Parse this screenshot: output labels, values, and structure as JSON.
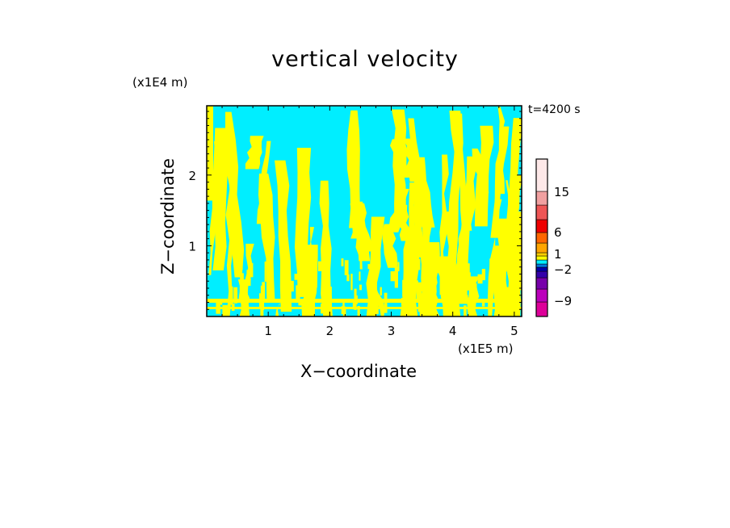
{
  "chart_data": {
    "type": "heatmap",
    "title": "vertical velocity",
    "xlabel": "X−coordinate",
    "ylabel": "Z−coordinate",
    "x_unit_label": "(x1E5 m)",
    "y_unit_label": "(x1E4 m)",
    "time_label": "t=4200 s",
    "xlim": [
      0,
      5.12
    ],
    "ylim": [
      0,
      2.98
    ],
    "x_ticks": [
      1,
      2,
      3,
      4,
      5
    ],
    "x_tick_labels": [
      "1",
      "2",
      "3",
      "4",
      "5"
    ],
    "y_ticks": [
      1,
      2
    ],
    "y_tick_labels": [
      "1",
      "2"
    ],
    "field_colors": {
      "positive": "#ffff00",
      "negative": "#00eeff"
    },
    "colorbar": {
      "levels_bottom_to_top": [
        {
          "color": "#dd0099"
        },
        {
          "color": "#bb00bb"
        },
        {
          "color": "#7700aa"
        },
        {
          "color": "#3300aa"
        },
        {
          "color": "#0000aa"
        },
        {
          "color": "#0077dd"
        },
        {
          "color": "#00eeff"
        },
        {
          "color": "#ffff00"
        },
        {
          "color": "#ffd000"
        },
        {
          "color": "#ffa500"
        },
        {
          "color": "#ff6600"
        },
        {
          "color": "#ee0000"
        },
        {
          "color": "#ee5555"
        },
        {
          "color": "#f0a0a0"
        },
        {
          "color": "#fde8e8"
        }
      ],
      "tick_labels": [
        "15",
        "6",
        "1",
        "−2",
        "−9"
      ]
    }
  }
}
